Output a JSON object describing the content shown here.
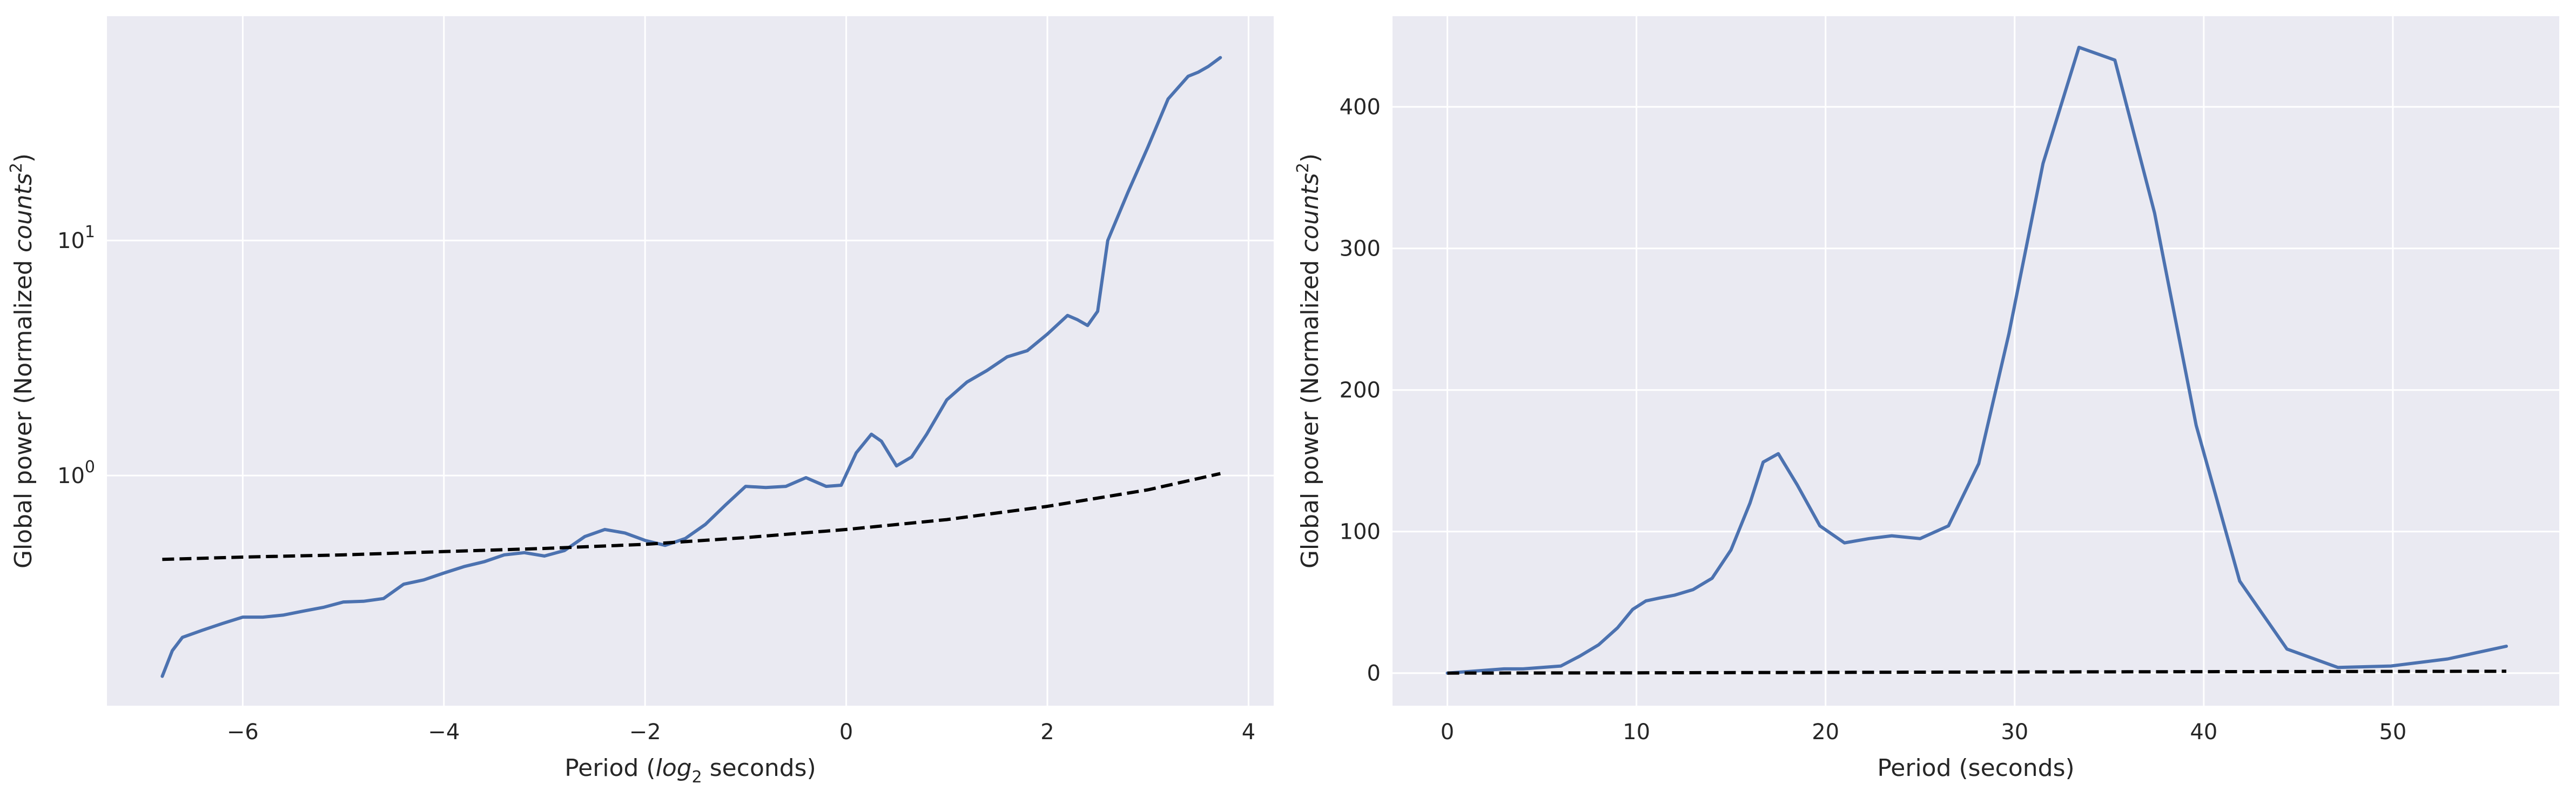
{
  "colors": {
    "panel_background": "#eaeaf2",
    "grid": "#ffffff",
    "series_line": "#4c72b0",
    "significance_line": "#000000"
  },
  "chart_data": [
    {
      "type": "line",
      "title": "",
      "xlabel_parts": [
        "Period (",
        "log",
        "2",
        " seconds)"
      ],
      "ylabel_parts": [
        "Global power (Normalized ",
        "counts",
        "2",
        ")"
      ],
      "x_scale": "linear",
      "y_scale": "log",
      "xlim": [
        -7.35,
        4.25
      ],
      "ylim": [
        0.105,
        90
      ],
      "xticks": [
        -6,
        -4,
        -2,
        0,
        2,
        4
      ],
      "xtick_labels": [
        "−6",
        "−4",
        "−2",
        "0",
        "2",
        "4"
      ],
      "yticks": [
        {
          "value": 1,
          "base": "10",
          "exp": "0"
        },
        {
          "value": 10,
          "base": "10",
          "exp": "1"
        }
      ],
      "grid": true,
      "series": [
        {
          "style": "solid",
          "color": "#4c72b0",
          "x": [
            -6.8,
            -6.7,
            -6.6,
            -6.4,
            -6.2,
            -6.0,
            -5.8,
            -5.6,
            -5.4,
            -5.2,
            -5.0,
            -4.8,
            -4.6,
            -4.4,
            -4.2,
            -4.0,
            -3.8,
            -3.6,
            -3.4,
            -3.2,
            -3.0,
            -2.8,
            -2.6,
            -2.4,
            -2.2,
            -2.0,
            -1.8,
            -1.6,
            -1.4,
            -1.2,
            -1.0,
            -0.8,
            -0.6,
            -0.4,
            -0.2,
            -0.05,
            0.1,
            0.25,
            0.35,
            0.5,
            0.65,
            0.8,
            1.0,
            1.2,
            1.4,
            1.6,
            1.8,
            2.0,
            2.2,
            2.3,
            2.4,
            2.5,
            2.6,
            2.8,
            3.0,
            3.2,
            3.4,
            3.5,
            3.6,
            3.72
          ],
          "y": [
            0.14,
            0.18,
            0.205,
            0.22,
            0.235,
            0.25,
            0.25,
            0.255,
            0.265,
            0.275,
            0.29,
            0.292,
            0.3,
            0.345,
            0.36,
            0.385,
            0.41,
            0.43,
            0.46,
            0.47,
            0.455,
            0.48,
            0.55,
            0.59,
            0.57,
            0.53,
            0.505,
            0.54,
            0.62,
            0.75,
            0.9,
            0.89,
            0.9,
            0.98,
            0.9,
            0.91,
            1.25,
            1.5,
            1.4,
            1.1,
            1.2,
            1.5,
            2.1,
            2.5,
            2.8,
            3.2,
            3.4,
            4.0,
            4.8,
            4.6,
            4.35,
            5.0,
            10.0,
            16.0,
            25.0,
            40.0,
            50.0,
            52.0,
            55.0,
            60.0
          ]
        },
        {
          "style": "dashed",
          "color": "#000000",
          "x": [
            -6.8,
            -6.0,
            -5.0,
            -4.0,
            -3.0,
            -2.0,
            -1.0,
            0.0,
            1.0,
            2.0,
            3.0,
            3.72
          ],
          "y": [
            0.44,
            0.45,
            0.46,
            0.475,
            0.49,
            0.51,
            0.545,
            0.59,
            0.65,
            0.74,
            0.87,
            1.02
          ]
        }
      ]
    },
    {
      "type": "line",
      "title": "",
      "xlabel_parts": [
        "Period (seconds)"
      ],
      "ylabel_parts": [
        "Global power (Normalized ",
        "counts",
        "2",
        ")"
      ],
      "x_scale": "linear",
      "y_scale": "linear",
      "xlim": [
        -2.9,
        58.8
      ],
      "ylim": [
        -23,
        464
      ],
      "xticks": [
        0,
        10,
        20,
        30,
        40,
        50
      ],
      "xtick_labels": [
        "0",
        "10",
        "20",
        "30",
        "40",
        "50"
      ],
      "yticks": [
        {
          "value": 0,
          "label": "0"
        },
        {
          "value": 100,
          "label": "100"
        },
        {
          "value": 200,
          "label": "200"
        },
        {
          "value": 300,
          "label": "300"
        },
        {
          "value": 400,
          "label": "400"
        }
      ],
      "grid": true,
      "series": [
        {
          "style": "solid",
          "color": "#4c72b0",
          "x": [
            0,
            1,
            2,
            3,
            4,
            5,
            6,
            7,
            8,
            9,
            9.8,
            10.5,
            11.2,
            12,
            13,
            14,
            15,
            16,
            16.7,
            17.5,
            18.5,
            19.7,
            21,
            22.3,
            23.5,
            25,
            26.5,
            28.1,
            29.7,
            31.5,
            33.4,
            35.3,
            37.4,
            39.6,
            41.9,
            44.4,
            47.1,
            49.9,
            52.9,
            56.0
          ],
          "y": [
            0,
            1,
            2,
            3,
            3,
            4,
            5,
            12,
            20,
            32,
            45,
            51,
            53,
            55,
            59,
            67,
            87,
            120,
            149,
            155,
            133,
            104,
            92,
            95,
            97,
            95,
            104,
            148,
            240,
            360,
            442,
            433,
            325,
            175,
            65,
            17,
            4,
            5,
            10,
            19
          ]
        },
        {
          "style": "dashed",
          "color": "#000000",
          "x": [
            0,
            10,
            20,
            30,
            40,
            50,
            56
          ],
          "y": [
            0.0,
            0.2,
            0.5,
            0.8,
            1.0,
            1.2,
            1.3
          ]
        }
      ]
    }
  ]
}
